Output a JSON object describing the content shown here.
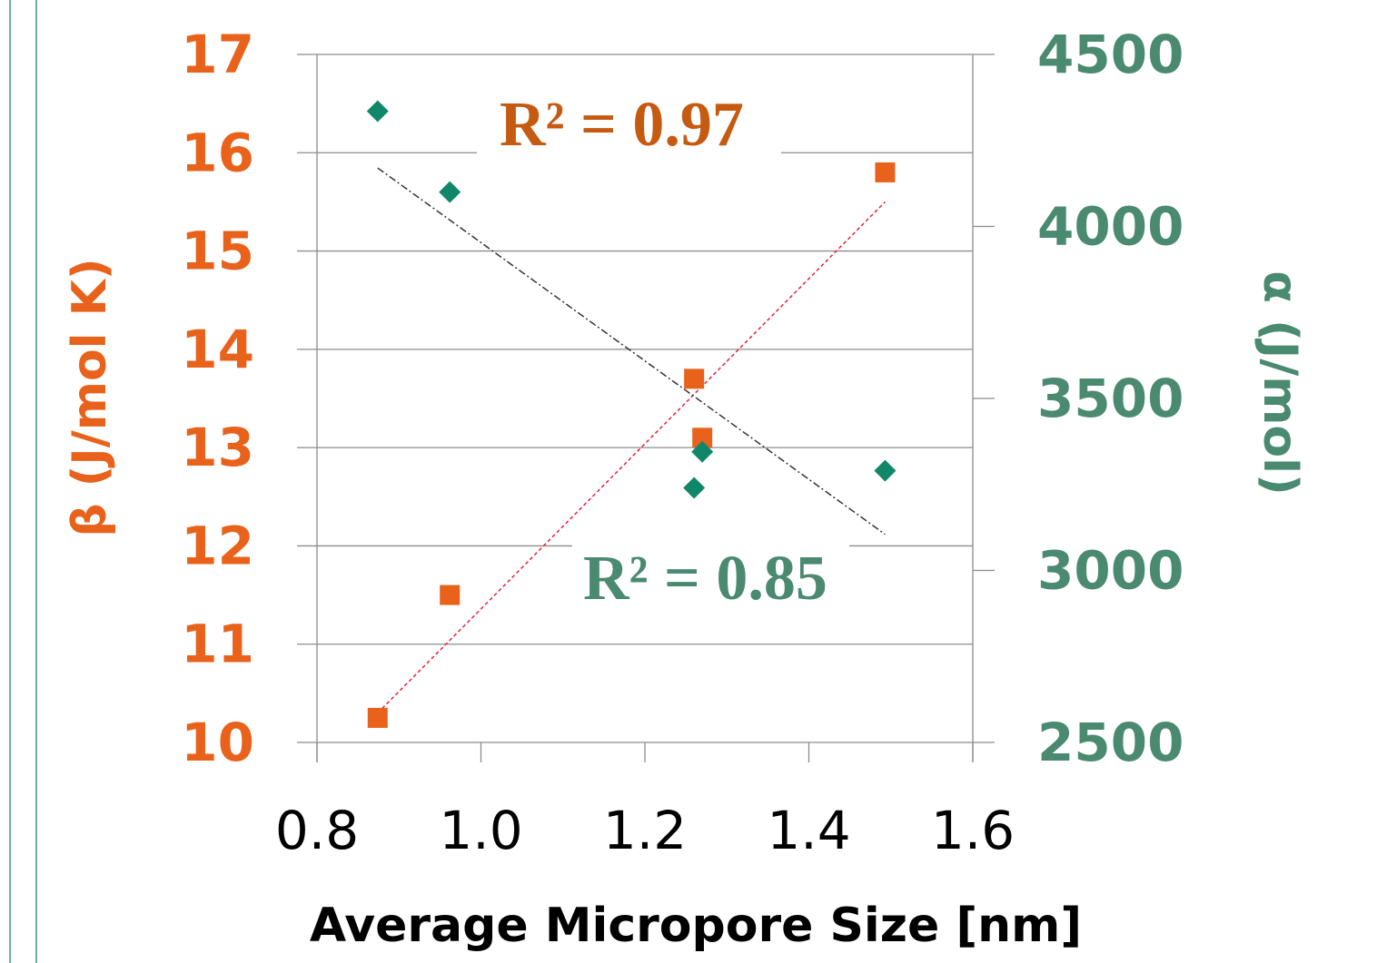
{
  "chart_data": {
    "type": "scatter",
    "xlabel": "Average Micropore Size [nm]",
    "ylabel_left": "β (J/mol K)",
    "ylabel_right": "α (J/mol)",
    "xlim": [
      0.8,
      1.6
    ],
    "xticks": [
      "0.8",
      "1.0",
      "1.2",
      "1.4",
      "1.6"
    ],
    "ylim_left": [
      10,
      17
    ],
    "yticks_left": [
      "10",
      "11",
      "12",
      "13",
      "14",
      "15",
      "16",
      "17"
    ],
    "ylim_right": [
      2500,
      4500
    ],
    "yticks_right": [
      "2500",
      "3000",
      "3500",
      "4000",
      "4500"
    ],
    "grid": true,
    "colors": {
      "beta": "#E9621B",
      "alpha": "#11876A",
      "alpha_axis": "#4A8A70",
      "beta_fit": "#E8203A",
      "alpha_fit": "#333333"
    },
    "series": [
      {
        "axis": "left",
        "marker": "square",
        "x": [
          0.874,
          0.962,
          1.26,
          1.27,
          1.493
        ],
        "y": [
          10.25,
          11.5,
          13.7,
          13.1,
          15.8
        ],
        "trendline": {
          "x": [
            0.874,
            1.493
          ],
          "y": [
            10.3,
            15.5
          ],
          "label": "R² = 0.97"
        }
      },
      {
        "axis": "right",
        "marker": "diamond",
        "x": [
          0.874,
          0.962,
          1.26,
          1.27,
          1.493
        ],
        "y": [
          4335,
          4100,
          3240,
          3345,
          3290
        ],
        "trendline": {
          "x": [
            0.874,
            1.493
          ],
          "y": [
            4170,
            3105
          ],
          "label": "R² = 0.85"
        }
      }
    ]
  }
}
